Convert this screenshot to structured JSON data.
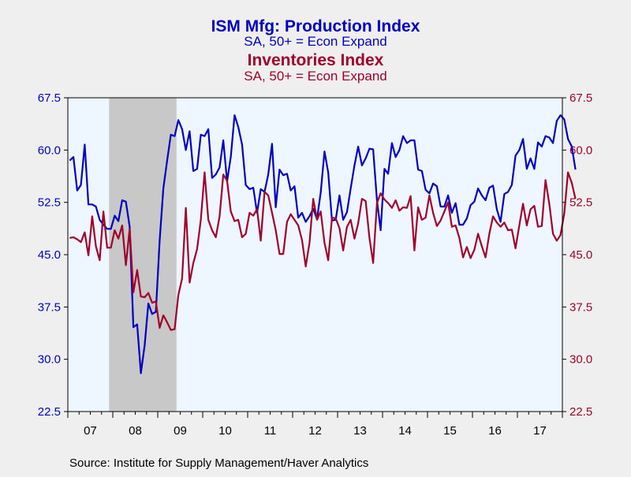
{
  "titles": {
    "production_title": "ISM Mfg: Production Index",
    "production_subtitle": "SA, 50+ = Econ Expand",
    "inventories_title": "Inventories Index",
    "inventories_subtitle": "SA, 50+ = Econ Expand"
  },
  "source": "Source:  Institute for Supply Management/Haver Analytics",
  "colors": {
    "production": "#0000c0",
    "inventories": "#a0002a",
    "plot_background": "#eef6ff",
    "recession": "#c8c8c8",
    "page_background": "#efefef"
  },
  "chart_data": {
    "type": "line",
    "y_axis_ticks_left": [
      "67.5",
      "60.0",
      "52.5",
      "45.0",
      "37.5",
      "30.0",
      "22.5"
    ],
    "y_axis_ticks_right": [
      "67.5",
      "60.0",
      "52.5",
      "45.0",
      "37.5",
      "30.0",
      "22.5"
    ],
    "ylim": [
      22.5,
      67.5
    ],
    "x_tick_labels": [
      "07",
      "08",
      "09",
      "10",
      "11",
      "12",
      "13",
      "14",
      "15",
      "16",
      "17"
    ],
    "x_range": [
      2007.0,
      2018.0
    ],
    "recession_shading": [
      2007.917,
      2009.417
    ],
    "grid": false,
    "legend": "titles at top",
    "series": [
      {
        "name": "ISM Mfg: Production Index",
        "axis": "left",
        "start": "2007-01",
        "values": [
          58.5,
          59.0,
          54.2,
          55.0,
          60.8,
          52.2,
          52.2,
          51.9,
          50.0,
          49.3,
          48.7,
          48.7,
          50.6,
          49.8,
          52.8,
          52.6,
          49.0,
          34.6,
          35.0,
          28.0,
          32.0,
          38.0,
          36.5,
          36.8,
          47.0,
          54.5,
          58.5,
          62.2,
          62.0,
          64.3,
          63.0,
          60.0,
          62.7,
          57.0,
          57.3,
          62.2,
          62.0,
          63.0,
          56.0,
          56.5,
          57.5,
          61.4,
          55.5,
          59.0,
          65.0,
          63.3,
          60.8,
          55.0,
          54.4,
          54.6,
          51.0,
          54.4,
          54.0,
          56.5,
          60.9,
          51.8,
          57.2,
          56.4,
          56.6,
          54.2,
          54.8,
          50.3,
          51.0,
          49.7,
          50.5,
          51.6,
          50.1,
          53.9,
          59.8,
          56.8,
          49.9,
          50.0,
          53.5,
          50.0,
          51.1,
          54.5,
          57.8,
          60.5,
          57.8,
          58.8,
          60.2,
          60.1,
          52.8,
          48.5,
          57.3,
          56.6,
          61.0,
          59.0,
          60.0,
          62.0,
          61.0,
          61.4,
          61.4,
          57.2,
          57.0,
          54.3,
          53.8,
          55.2,
          54.8,
          51.9,
          51.9,
          53.5,
          51.0,
          52.4,
          49.3,
          49.3,
          50.2,
          52.1,
          52.6,
          54.5,
          53.5,
          52.8,
          54.6,
          54.9,
          51.5,
          49.7,
          53.7,
          54.0,
          55.0,
          59.2,
          60.0,
          61.6,
          57.3,
          58.8,
          57.3,
          61.1,
          60.5,
          62.0,
          61.8,
          61.0,
          64.2,
          65.0,
          64.4,
          61.6,
          60.5,
          57.2
        ]
      },
      {
        "name": "Inventories Index",
        "axis": "right",
        "start": "2007-01",
        "values": [
          47.4,
          47.5,
          47.2,
          46.8,
          48.2,
          44.9,
          50.5,
          46.2,
          44.2,
          51.2,
          46.0,
          46.0,
          48.5,
          47.3,
          49.2,
          43.5,
          48.7,
          39.6,
          42.8,
          39.0,
          38.9,
          39.5,
          38.1,
          38.3,
          34.5,
          36.3,
          35.3,
          34.2,
          34.3,
          39.2,
          41.6,
          51.7,
          41.0,
          43.8,
          45.8,
          50.0,
          56.8,
          50.0,
          48.5,
          47.5,
          50.5,
          56.5,
          55.6,
          51.2,
          49.8,
          50.0,
          47.5,
          48.0,
          51.0,
          50.6,
          51.5,
          47.0,
          54.0,
          53.5,
          51.0,
          48.5,
          45.1,
          45.1,
          49.7,
          50.8,
          50.0,
          49.2,
          47.1,
          43.3,
          46.7,
          53.0,
          50.0,
          51.2,
          46.7,
          44.2,
          50.3,
          50.2,
          48.8,
          45.6,
          49.0,
          50.0,
          47.3,
          49.5,
          53.0,
          52.7,
          47.4,
          43.8,
          52.4,
          53.8,
          52.9,
          52.4,
          51.7,
          52.8,
          51.3,
          51.8,
          51.7,
          53.4,
          45.6,
          51.8,
          50.0,
          50.3,
          53.5,
          51.0,
          49.1,
          49.9,
          51.2,
          52.5,
          49.0,
          49.2,
          47.4,
          44.6,
          46.1,
          44.5,
          45.7,
          48.0,
          46.2,
          44.6,
          48.0,
          50.5,
          49.6,
          49.0,
          49.6,
          48.5,
          48.6,
          45.9,
          49.2,
          52.3,
          49.2,
          51.5,
          52.0,
          49.0,
          49.1,
          55.7,
          52.3,
          48.0,
          47.0,
          47.8,
          50.9,
          56.8,
          55.3,
          53.0
        ]
      }
    ]
  }
}
